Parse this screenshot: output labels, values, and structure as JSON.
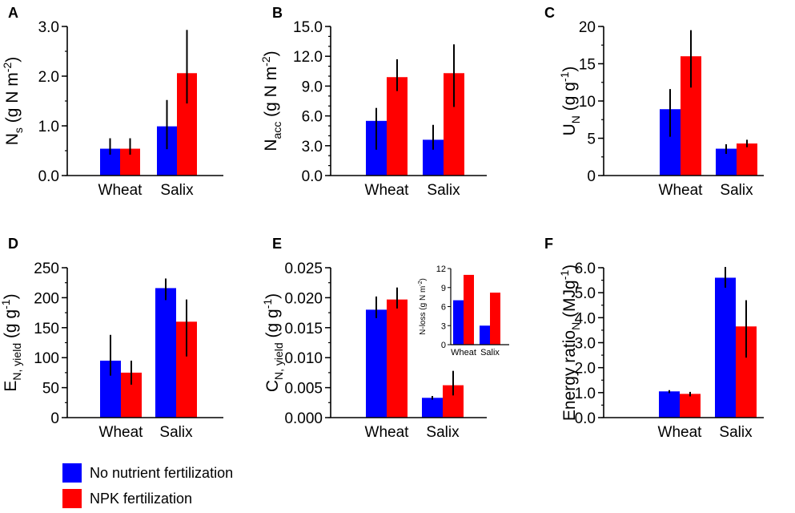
{
  "colors": {
    "no_fert": "#0000ff",
    "npk": "#ff0000",
    "axis": "#000000"
  },
  "legend": {
    "items": [
      {
        "label": "No nutrient fertilization",
        "color": "#0000ff"
      },
      {
        "label": "NPK fertilization",
        "color": "#ff0000"
      }
    ]
  },
  "chart_data": [
    {
      "panel": "A",
      "type": "bar",
      "categories": [
        "Wheat",
        "Salix"
      ],
      "series": [
        {
          "name": "No nutrient fertilization",
          "values": [
            0.54,
            0.99
          ],
          "err_low": [
            0.42,
            0.53
          ],
          "err_high": [
            0.75,
            1.52
          ]
        },
        {
          "name": "NPK fertilization",
          "values": [
            0.54,
            2.06
          ],
          "err_low": [
            0.42,
            1.45
          ],
          "err_high": [
            0.75,
            2.93
          ]
        }
      ],
      "ylabel_base": "N",
      "ylabel_sub": "s",
      "ylabel_rest": " (g N m",
      "ylabel_sup": "-2",
      "ylabel_end": ")",
      "ylim": [
        0,
        3
      ],
      "ticks": [
        0,
        1,
        2,
        3
      ],
      "tick_labels": [
        "0.0",
        "1.0",
        "2.0",
        "3.0"
      ],
      "minor_step": 0.5
    },
    {
      "panel": "B",
      "type": "bar",
      "categories": [
        "Wheat",
        "Salix"
      ],
      "series": [
        {
          "name": "No nutrient fertilization",
          "values": [
            5.5,
            3.6
          ],
          "err_low": [
            2.6,
            2.6
          ],
          "err_high": [
            6.8,
            5.1
          ]
        },
        {
          "name": "NPK fertilization",
          "values": [
            9.9,
            10.3
          ],
          "err_low": [
            8.5,
            6.9
          ],
          "err_high": [
            11.7,
            13.2
          ]
        }
      ],
      "ylabel_base": "N",
      "ylabel_sub": "acc",
      "ylabel_rest": " (g N m",
      "ylabel_sup": "-2",
      "ylabel_end": ")",
      "ylim": [
        0,
        15
      ],
      "ticks": [
        0,
        3,
        6,
        9,
        12,
        15
      ],
      "tick_labels": [
        "0.0",
        "3.0",
        "6.0",
        "9.0",
        "12.0",
        "15.0"
      ],
      "minor_step": 1
    },
    {
      "panel": "C",
      "type": "bar",
      "categories": [
        "Wheat",
        "Salix"
      ],
      "series": [
        {
          "name": "No nutrient fertilization",
          "values": [
            8.9,
            3.6
          ],
          "err_low": [
            5.2,
            2.9
          ],
          "err_high": [
            11.6,
            4.2
          ]
        },
        {
          "name": "NPK fertilization",
          "values": [
            16.0,
            4.3
          ],
          "err_low": [
            11.8,
            3.8
          ],
          "err_high": [
            19.5,
            4.8
          ]
        }
      ],
      "ylabel_base": "U",
      "ylabel_sub": "N",
      "ylabel_rest": " (g g",
      "ylabel_sup": "-1",
      "ylabel_end": ")",
      "ylim": [
        0,
        20
      ],
      "ticks": [
        0,
        5,
        10,
        15,
        20
      ],
      "tick_labels": [
        "0",
        "5",
        "10",
        "15",
        "20"
      ],
      "minor_step": 2.5
    },
    {
      "panel": "D",
      "type": "bar",
      "categories": [
        "Wheat",
        "Salix"
      ],
      "series": [
        {
          "name": "No nutrient fertilization",
          "values": [
            95,
            216
          ],
          "err_low": [
            70,
            196
          ],
          "err_high": [
            138,
            232
          ]
        },
        {
          "name": "NPK fertilization",
          "values": [
            75,
            160
          ],
          "err_low": [
            55,
            102
          ],
          "err_high": [
            95,
            197
          ]
        }
      ],
      "ylabel_base": "E",
      "ylabel_sub": "N, yield",
      "ylabel_rest": " (g g",
      "ylabel_sup": "-1",
      "ylabel_end": ")",
      "ylim": [
        0,
        250
      ],
      "ticks": [
        0,
        50,
        100,
        150,
        200,
        250
      ],
      "tick_labels": [
        "0",
        "50",
        "100",
        "150",
        "200",
        "250"
      ],
      "minor_step": 25
    },
    {
      "panel": "E",
      "type": "bar",
      "categories": [
        "Wheat",
        "Salix"
      ],
      "series": [
        {
          "name": "No nutrient fertilization",
          "values": [
            0.018,
            0.0033
          ],
          "err_low": [
            0.0166,
            0.003
          ],
          "err_high": [
            0.0202,
            0.0036
          ]
        },
        {
          "name": "NPK fertilization",
          "values": [
            0.0197,
            0.0054
          ],
          "err_low": [
            0.0182,
            0.0037
          ],
          "err_high": [
            0.0217,
            0.0078
          ]
        }
      ],
      "ylabel_base": "C",
      "ylabel_sub": "N, yield",
      "ylabel_rest": " (g g",
      "ylabel_sup": "-1",
      "ylabel_end": ")",
      "ylim": [
        0,
        0.025
      ],
      "ticks": [
        0,
        0.005,
        0.01,
        0.015,
        0.02,
        0.025
      ],
      "tick_labels": [
        "0.000",
        "0.005",
        "0.010",
        "0.015",
        "0.020",
        "0.025"
      ],
      "minor_step": 0.0025,
      "inset": {
        "type": "bar",
        "categories": [
          "Wheat",
          "Salix"
        ],
        "series": [
          {
            "name": "No nutrient fertilization",
            "values": [
              7,
              3
            ]
          },
          {
            "name": "NPK fertilization",
            "values": [
              11,
              8.2
            ]
          }
        ],
        "ylabel": "N-loss (g N m",
        "ylabel_sup": "-2",
        "ylabel_end": ")",
        "ylim": [
          0,
          12
        ],
        "ticks": [
          0,
          3,
          6,
          9,
          12
        ],
        "tick_labels": [
          "0",
          "3",
          "6",
          "9",
          "12"
        ]
      }
    },
    {
      "panel": "F",
      "type": "bar",
      "categories": [
        "Wheat",
        "Salix"
      ],
      "series": [
        {
          "name": "No nutrient fertilization",
          "values": [
            1.05,
            5.6
          ],
          "err_low": [
            0.98,
            5.2
          ],
          "err_high": [
            1.1,
            6.03
          ]
        },
        {
          "name": "NPK fertilization",
          "values": [
            0.95,
            3.65
          ],
          "err_low": [
            0.85,
            2.4
          ],
          "err_high": [
            1.03,
            4.7
          ]
        }
      ],
      "ylabel_base": "Energy ratio",
      "ylabel_sub": "N",
      "ylabel_rest": " (MJg",
      "ylabel_sup": "-1",
      "ylabel_end": ")",
      "ylim": [
        0,
        6
      ],
      "ticks": [
        0,
        1,
        2,
        3,
        4,
        5,
        6
      ],
      "tick_labels": [
        "0.0",
        "1.0",
        "2.0",
        "3.0",
        "4.0",
        "5.0",
        "6.0"
      ],
      "minor_step": 0.5
    }
  ]
}
